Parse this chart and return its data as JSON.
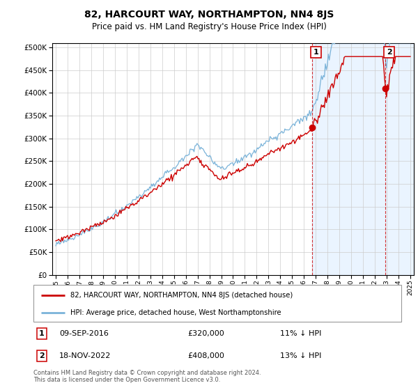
{
  "title": "82, HARCOURT WAY, NORTHAMPTON, NN4 8JS",
  "subtitle": "Price paid vs. HM Land Registry's House Price Index (HPI)",
  "hpi_color": "#7ab3d9",
  "hpi_fill_color": "#ddeeff",
  "price_color": "#cc0000",
  "marker1_year": 2016.7,
  "marker2_year": 2022.88,
  "legend1_text": "82, HARCOURT WAY, NORTHAMPTON, NN4 8JS (detached house)",
  "legend2_text": "HPI: Average price, detached house, West Northamptonshire",
  "note1_label": "1",
  "note1_date": "09-SEP-2016",
  "note1_price": "£320,000",
  "note1_info": "11% ↓ HPI",
  "note2_label": "2",
  "note2_date": "18-NOV-2022",
  "note2_price": "£408,000",
  "note2_info": "13% ↓ HPI",
  "footer": "Contains HM Land Registry data © Crown copyright and database right 2024.\nThis data is licensed under the Open Government Licence v3.0.",
  "xmin": 1995,
  "xmax": 2025,
  "ymin": 0,
  "ymax": 500000,
  "ystep": 50000
}
